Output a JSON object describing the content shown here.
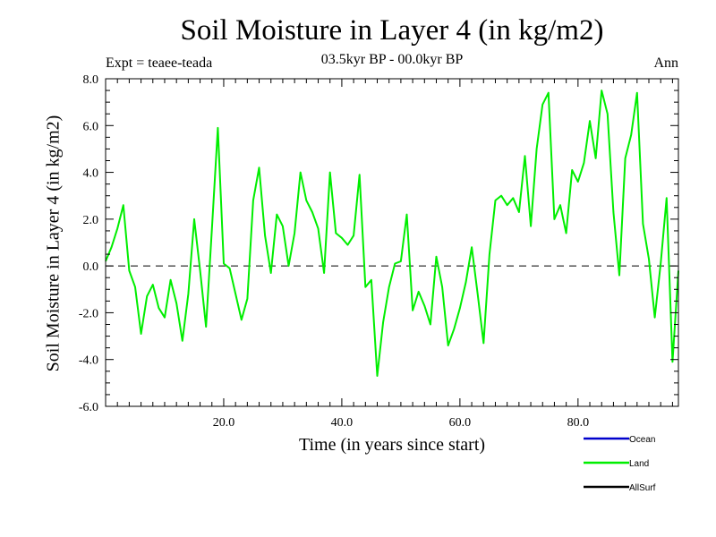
{
  "chart_data": {
    "type": "line",
    "title": "Soil Moisture in Layer 4 (in kg/m2)",
    "subtitle": "03.5kyr BP - 00.0kyr BP",
    "experiment": "Expt = teaee-teada",
    "period": "Ann",
    "xlabel": "Time (in years since start)",
    "ylabel": "Soil Moisture in Layer 4 (in kg/m2)",
    "xlim": [
      0,
      97
    ],
    "ylim": [
      -6.0,
      8.0
    ],
    "x_ticks": [
      20.0,
      40.0,
      60.0,
      80.0
    ],
    "x_tick_labels": [
      "20.0",
      "40.0",
      "60.0",
      "80.0"
    ],
    "y_ticks": [
      -6.0,
      -4.0,
      -2.0,
      0.0,
      2.0,
      4.0,
      6.0,
      8.0
    ],
    "y_tick_labels": [
      "-6.0",
      "-4.0",
      "-2.0",
      "0.0",
      "2.0",
      "4.0",
      "6.0",
      "8.0"
    ],
    "reference_line": 0.0,
    "legend": [
      {
        "name": "Ocean",
        "color": "#0000cc"
      },
      {
        "name": "Land",
        "color": "#00ee00"
      },
      {
        "name": "AllSurf",
        "color": "#000000"
      }
    ],
    "series": [
      {
        "name": "Land",
        "color": "#00ee00",
        "x": [
          0,
          1,
          2,
          3,
          4,
          5,
          6,
          7,
          8,
          9,
          10,
          11,
          12,
          13,
          14,
          15,
          16,
          17,
          18,
          19,
          20,
          21,
          22,
          23,
          24,
          25,
          26,
          27,
          28,
          29,
          30,
          31,
          32,
          33,
          34,
          35,
          36,
          37,
          38,
          39,
          40,
          41,
          42,
          43,
          44,
          45,
          46,
          47,
          48,
          49,
          50,
          51,
          52,
          53,
          54,
          55,
          56,
          57,
          58,
          59,
          60,
          61,
          62,
          63,
          64,
          65,
          66,
          67,
          68,
          69,
          70,
          71,
          72,
          73,
          74,
          75,
          76,
          77,
          78,
          79,
          80,
          81,
          82,
          83,
          84,
          85,
          86,
          87,
          88,
          89,
          90,
          91,
          92,
          93,
          94,
          95,
          96,
          97
        ],
        "values": [
          0.2,
          0.8,
          1.6,
          2.6,
          -0.2,
          -0.9,
          -2.9,
          -1.3,
          -0.8,
          -1.8,
          -2.2,
          -0.6,
          -1.6,
          -3.2,
          -1.2,
          2.0,
          -0.2,
          -2.6,
          1.6,
          5.9,
          0.1,
          -0.1,
          -1.2,
          -2.3,
          -1.4,
          2.8,
          4.2,
          1.3,
          -0.3,
          2.2,
          1.7,
          0.0,
          1.4,
          4.0,
          2.8,
          2.3,
          1.6,
          -0.3,
          4.0,
          1.4,
          1.2,
          0.9,
          1.3,
          3.9,
          -0.9,
          -0.6,
          -4.7,
          -2.4,
          -0.9,
          0.1,
          0.2,
          2.2,
          -1.9,
          -1.1,
          -1.7,
          -2.5,
          0.4,
          -0.9,
          -3.4,
          -2.7,
          -1.8,
          -0.7,
          0.8,
          -1.2,
          -3.3,
          0.5,
          2.8,
          3.0,
          2.6,
          2.9,
          2.3,
          4.7,
          1.7,
          5.0,
          6.9,
          7.4,
          2.0,
          2.6,
          1.4,
          4.1,
          3.6,
          4.4,
          6.2,
          4.6,
          7.5,
          6.5,
          2.3,
          -0.4,
          4.6,
          5.6,
          7.4,
          1.8,
          0.3,
          -2.2,
          0.1,
          2.9,
          -4.1,
          -0.2
        ]
      }
    ]
  }
}
